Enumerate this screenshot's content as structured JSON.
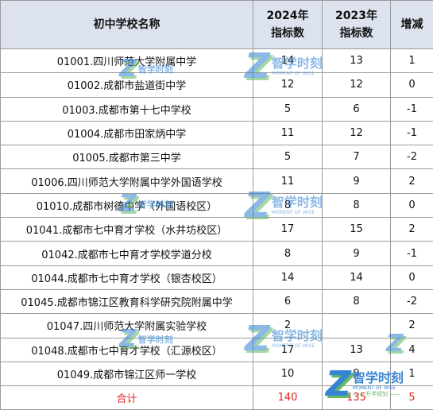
{
  "table": {
    "headers": {
      "school": "初中学校名称",
      "y2024_line1": "2024年",
      "y2024_line2": "指标数",
      "y2023_line1": "2023年",
      "y2023_line2": "指标数",
      "change": "增减"
    },
    "rows": [
      {
        "school": "01001.四川师范大学附属中学",
        "y2024": "14",
        "y2023": "13",
        "change": "1"
      },
      {
        "school": "01002.成都市盐道街中学",
        "y2024": "12",
        "y2023": "12",
        "change": "0"
      },
      {
        "school": "01003.成都市第十七中学校",
        "y2024": "5",
        "y2023": "6",
        "change": "-1"
      },
      {
        "school": "01004.成都市田家炳中学",
        "y2024": "11",
        "y2023": "12",
        "change": "-1"
      },
      {
        "school": "01005.成都市第三中学",
        "y2024": "5",
        "y2023": "7",
        "change": "-2"
      },
      {
        "school": "01006.四川师范大学附属中学外国语学校",
        "y2024": "11",
        "y2023": "9",
        "change": "2"
      },
      {
        "school": "01010.成都市树德中学（外国语校区）",
        "y2024": "8",
        "y2023": "8",
        "change": "0"
      },
      {
        "school": "01041.成都市七中育才学校（水井坊校区）",
        "y2024": "17",
        "y2023": "15",
        "change": "2"
      },
      {
        "school": "01042.成都市七中育才学校学道分校",
        "y2024": "8",
        "y2023": "9",
        "change": "-1"
      },
      {
        "school": "01044.成都市七中育才学校（银杏校区）",
        "y2024": "14",
        "y2023": "14",
        "change": "0"
      },
      {
        "school": "01045.成都市锦江区教育科学研究院附属中学",
        "y2024": "6",
        "y2023": "8",
        "change": "-2"
      },
      {
        "school": "01047.四川师范大学附属实验学校",
        "y2024": "2",
        "y2023": "",
        "change": "2"
      },
      {
        "school": "01048.成都市七中育才学校（汇源校区）",
        "y2024": "17",
        "y2023": "13",
        "change": "4"
      },
      {
        "school": "01049.成都市锦江区师一学校",
        "y2024": "10",
        "y2023": "9",
        "change": "1"
      }
    ],
    "total": {
      "label": "合计",
      "y2024": "140",
      "y2023": "135",
      "change": "5"
    }
  },
  "watermark": {
    "brand_cn": "智学时刻",
    "brand_en": "MOMENT OF WISE",
    "brand_sub": "—— 升学规划 ——"
  },
  "colors": {
    "header_bg": "#dce3ef",
    "total_text": "#e0231c",
    "watermark_blue": "#2d7fd0",
    "watermark_green": "#5cb85c"
  }
}
